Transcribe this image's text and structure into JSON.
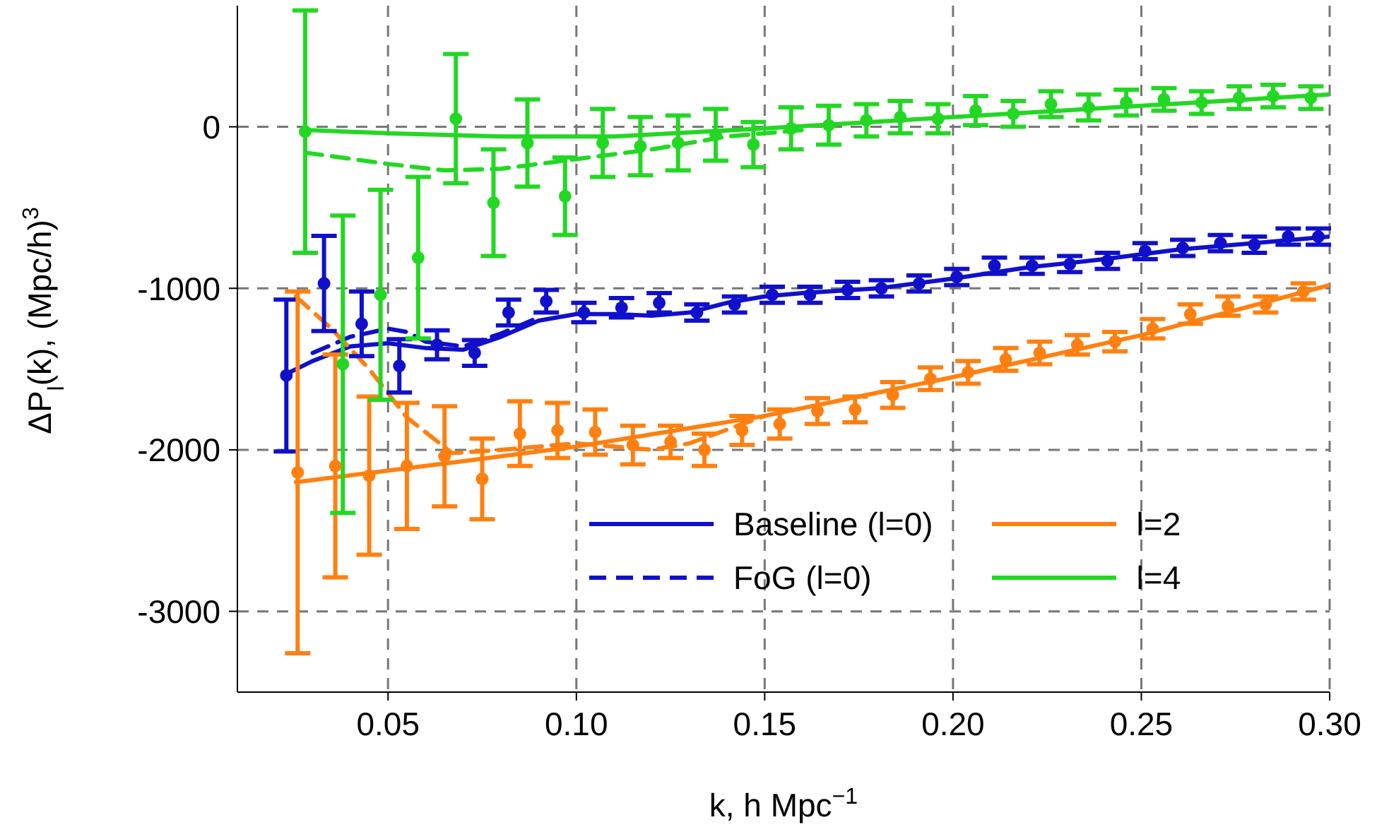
{
  "chart_data": {
    "type": "line",
    "xlabel": "k, h Mpc$^{−1}$",
    "ylabel": "ΔP$_{l}$(k), (Mpc/h)$^{3}$",
    "xlim": [
      0.01,
      0.3
    ],
    "ylim": [
      -3500,
      750
    ],
    "xticks": [
      0.05,
      {
        "value": 0.1,
        "label": "0.10"
      },
      0.15,
      {
        "value": 0.2,
        "label": "0.20"
      },
      0.25,
      {
        "value": 0.3,
        "label": "0.30"
      }
    ],
    "yticks": [
      -3000,
      -2000,
      -1000,
      0
    ],
    "grid": true,
    "legend": "bottom right",
    "series": [
      {
        "name": "Baseline (l=0)",
        "color": "#1010cc",
        "line_style": "solid",
        "x": [
          0.023,
          0.03,
          0.04,
          0.05,
          0.06,
          0.07,
          0.08,
          0.09,
          0.1,
          0.11,
          0.12,
          0.13,
          0.14,
          0.15,
          0.16,
          0.18,
          0.2,
          0.22,
          0.24,
          0.26,
          0.28,
          0.3
        ],
        "values": [
          -1530,
          -1450,
          -1360,
          -1340,
          -1370,
          -1380,
          -1300,
          -1200,
          -1160,
          -1160,
          -1170,
          -1150,
          -1090,
          -1050,
          -1030,
          -1000,
          -940,
          -870,
          -820,
          -760,
          -720,
          -680
        ]
      },
      {
        "name": "FoG (l=0)",
        "color": "#1010cc",
        "line_style": "dashed",
        "x": [
          0.03,
          0.04,
          0.05,
          0.055,
          0.06,
          0.07,
          0.08,
          0.09
        ],
        "values": [
          -1400,
          -1300,
          -1250,
          -1270,
          -1330,
          -1360,
          -1280,
          -1180
        ]
      },
      {
        "name": "l=2",
        "color": "#ff8010",
        "line_style": "solid",
        "x": [
          0.0255,
          0.07,
          0.1,
          0.15,
          0.2,
          0.25,
          0.3
        ],
        "values": [
          -2200,
          -2070,
          -1980,
          -1790,
          -1550,
          -1290,
          -980
        ]
      },
      {
        "color": "#ff8010",
        "line_style": "dashed",
        "x": [
          0.0255,
          0.035,
          0.045,
          0.055,
          0.067,
          0.08,
          0.1,
          0.12,
          0.13,
          0.15
        ],
        "values": [
          -1050,
          -1250,
          -1500,
          -1800,
          -2020,
          -2000,
          -1960,
          -2000,
          -1960,
          -1790
        ]
      },
      {
        "name": "l=4",
        "color": "#22d822",
        "line_style": "solid",
        "x": [
          0.028,
          0.05,
          0.08,
          0.11,
          0.15,
          0.2,
          0.25,
          0.3
        ],
        "values": [
          -20,
          -40,
          -60,
          -60,
          -10,
          60,
          130,
          200
        ]
      },
      {
        "color": "#22d822",
        "line_style": "dashed",
        "x": [
          0.028,
          0.05,
          0.065,
          0.08,
          0.1,
          0.12,
          0.14,
          0.16
        ],
        "values": [
          -160,
          -230,
          -270,
          -260,
          -200,
          -140,
          -60,
          -20
        ]
      },
      {
        "type": "scatter",
        "color": "#1010cc",
        "marker": "circle",
        "x": [
          0.023,
          0.033,
          0.043,
          0.053,
          0.063,
          0.073,
          0.082,
          0.092,
          0.102,
          0.112,
          0.122,
          0.132,
          0.142,
          0.152,
          0.162,
          0.172,
          0.181,
          0.191,
          0.201,
          0.211,
          0.221,
          0.231,
          0.241,
          0.251,
          0.261,
          0.271,
          0.28,
          0.289,
          0.297
        ],
        "values": [
          -1540,
          -970,
          -1220,
          -1480,
          -1350,
          -1400,
          -1150,
          -1080,
          -1150,
          -1120,
          -1090,
          -1150,
          -1100,
          -1040,
          -1040,
          -1010,
          -1000,
          -970,
          -930,
          -860,
          -860,
          -850,
          -830,
          -770,
          -750,
          -720,
          -730,
          -680,
          -680
        ],
        "errors": [
          470,
          295,
          200,
          165,
          90,
          80,
          80,
          70,
          60,
          60,
          60,
          50,
          50,
          50,
          50,
          50,
          50,
          50,
          50,
          50,
          50,
          50,
          50,
          50,
          50,
          50,
          50,
          50,
          50
        ]
      },
      {
        "type": "scatter",
        "color": "#ff8010",
        "marker": "circle",
        "x": [
          0.026,
          0.036,
          0.045,
          0.055,
          0.065,
          0.075,
          0.085,
          0.095,
          0.105,
          0.115,
          0.125,
          0.134,
          0.144,
          0.154,
          0.164,
          0.174,
          0.184,
          0.194,
          0.204,
          0.214,
          0.223,
          0.233,
          0.243,
          0.253,
          0.263,
          0.273,
          0.283,
          0.293
        ],
        "values": [
          -2140,
          -2100,
          -2160,
          -2100,
          -2040,
          -2180,
          -1900,
          -1880,
          -1890,
          -1970,
          -1950,
          -2000,
          -1880,
          -1840,
          -1760,
          -1750,
          -1660,
          -1560,
          -1520,
          -1440,
          -1400,
          -1350,
          -1330,
          -1250,
          -1160,
          -1110,
          -1100,
          -1020
        ],
        "errors": [
          1120,
          690,
          490,
          390,
          310,
          250,
          200,
          170,
          140,
          120,
          100,
          100,
          90,
          90,
          80,
          80,
          80,
          70,
          70,
          70,
          70,
          60,
          60,
          60,
          60,
          60,
          50,
          50
        ]
      },
      {
        "type": "scatter",
        "color": "#22d822",
        "marker": "circle",
        "x": [
          0.028,
          0.038,
          0.048,
          0.058,
          0.068,
          0.078,
          0.087,
          0.097,
          0.107,
          0.117,
          0.127,
          0.137,
          0.147,
          0.157,
          0.167,
          0.177,
          0.186,
          0.196,
          0.206,
          0.216,
          0.226,
          0.236,
          0.246,
          0.256,
          0.266,
          0.276,
          0.285,
          0.295
        ],
        "values": [
          -30,
          -1470,
          -1040,
          -810,
          50,
          -470,
          -100,
          -430,
          -100,
          -120,
          -100,
          -50,
          -110,
          -10,
          10,
          40,
          60,
          50,
          100,
          80,
          140,
          120,
          150,
          170,
          150,
          180,
          190,
          180
        ],
        "errors": [
          750,
          920,
          650,
          500,
          400,
          330,
          270,
          240,
          210,
          180,
          170,
          160,
          140,
          130,
          120,
          100,
          100,
          90,
          90,
          80,
          80,
          80,
          80,
          70,
          70,
          70,
          70,
          70
        ]
      }
    ]
  }
}
